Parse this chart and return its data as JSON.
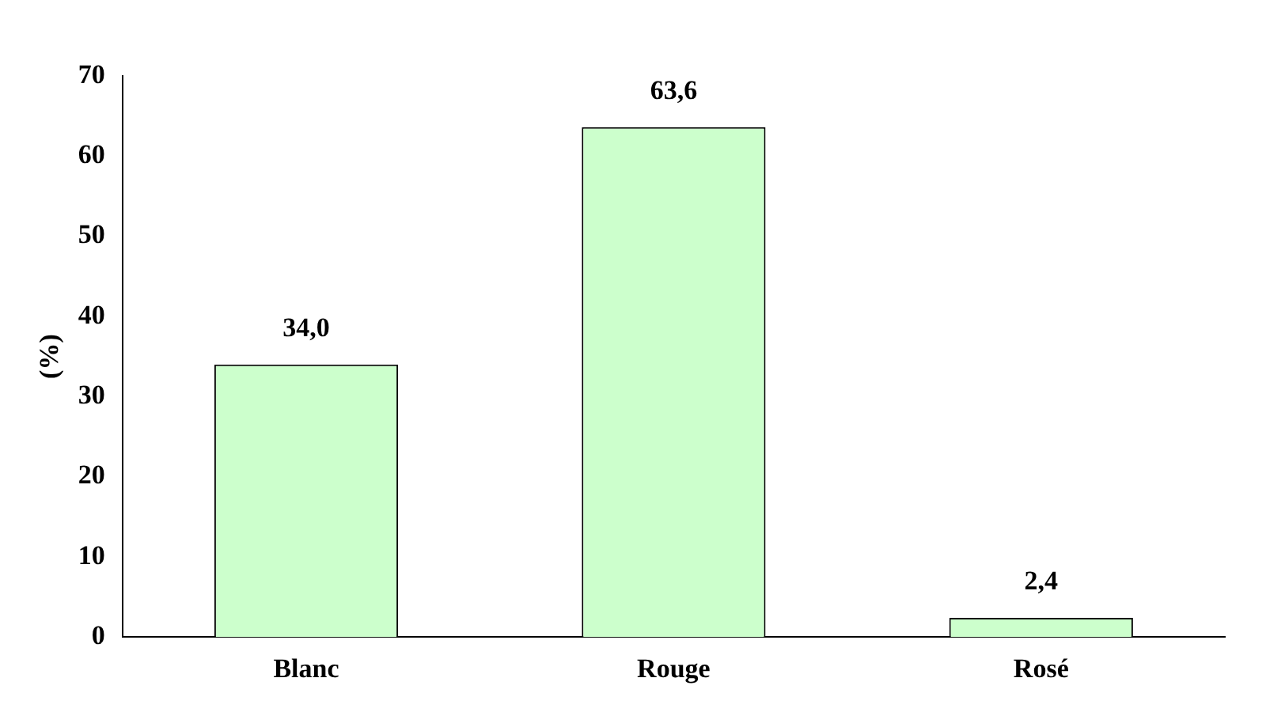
{
  "chart_data": {
    "type": "bar",
    "ylabel": "(%)",
    "categories": [
      "Blanc",
      "Rouge",
      "Rosé"
    ],
    "values": [
      34.0,
      63.6,
      2.4
    ],
    "value_labels": [
      "34,0",
      "63,6",
      "2,4"
    ],
    "color": "#ccffcc",
    "ylim": [
      0,
      70
    ],
    "yticks": [
      0,
      10,
      20,
      30,
      40,
      50,
      60,
      70
    ],
    "grid": false,
    "legend": false
  }
}
